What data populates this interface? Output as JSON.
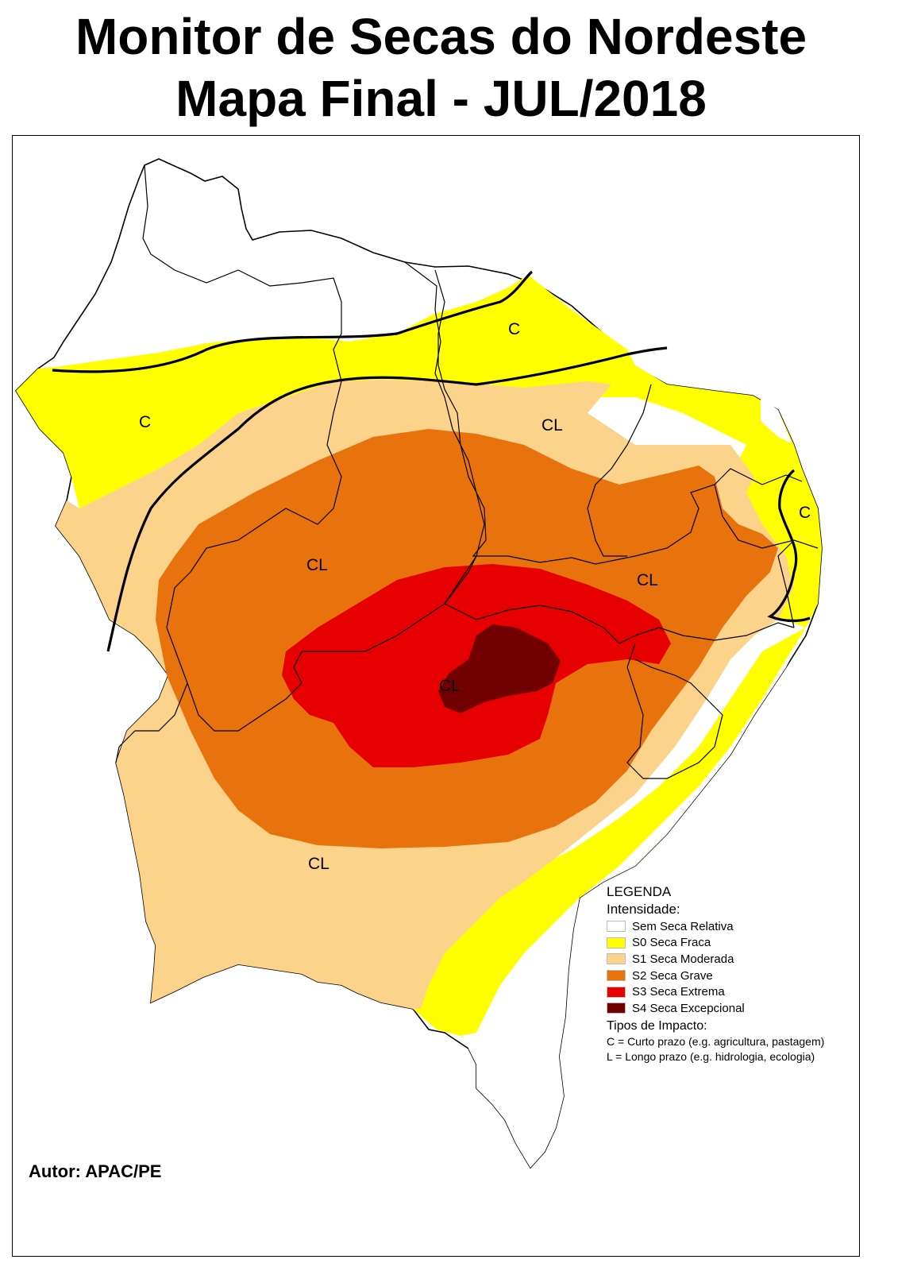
{
  "title": {
    "line1": "Monitor de Secas do Nordeste",
    "line2": "Mapa Final - JUL/2018"
  },
  "author": "Autor: APAC/PE",
  "legend": {
    "title": "LEGENDA",
    "intensity_label": "Intensidade:",
    "items": [
      {
        "label": "Sem Seca Relativa",
        "color": "#ffffff"
      },
      {
        "label": "S0 Seca Fraca",
        "color": "#ffff00"
      },
      {
        "label": "S1 Seca Moderada",
        "color": "#fcd38b"
      },
      {
        "label": "S2 Seca Grave",
        "color": "#e8730c"
      },
      {
        "label": "S3 Seca Extrema",
        "color": "#e60000"
      },
      {
        "label": "S4 Seca Excepcional",
        "color": "#730000"
      }
    ],
    "impact_label": "Tipos de Impacto:",
    "impact_items": [
      "C = Curto prazo (e.g. agricultura, pastagem)",
      "L = Longo prazo (e.g. hidrologia, ecologia)"
    ]
  },
  "region_labels": [
    {
      "text": "C",
      "name": "label-c-north"
    },
    {
      "text": "C",
      "name": "label-c-west"
    },
    {
      "text": "CL",
      "name": "label-cl-northeast"
    },
    {
      "text": "C",
      "name": "label-c-east"
    },
    {
      "text": "CL",
      "name": "label-cl-west-center"
    },
    {
      "text": "CL",
      "name": "label-cl-east-center"
    },
    {
      "text": "CL",
      "name": "label-cl-core"
    },
    {
      "text": "CL",
      "name": "label-cl-south"
    }
  ]
}
